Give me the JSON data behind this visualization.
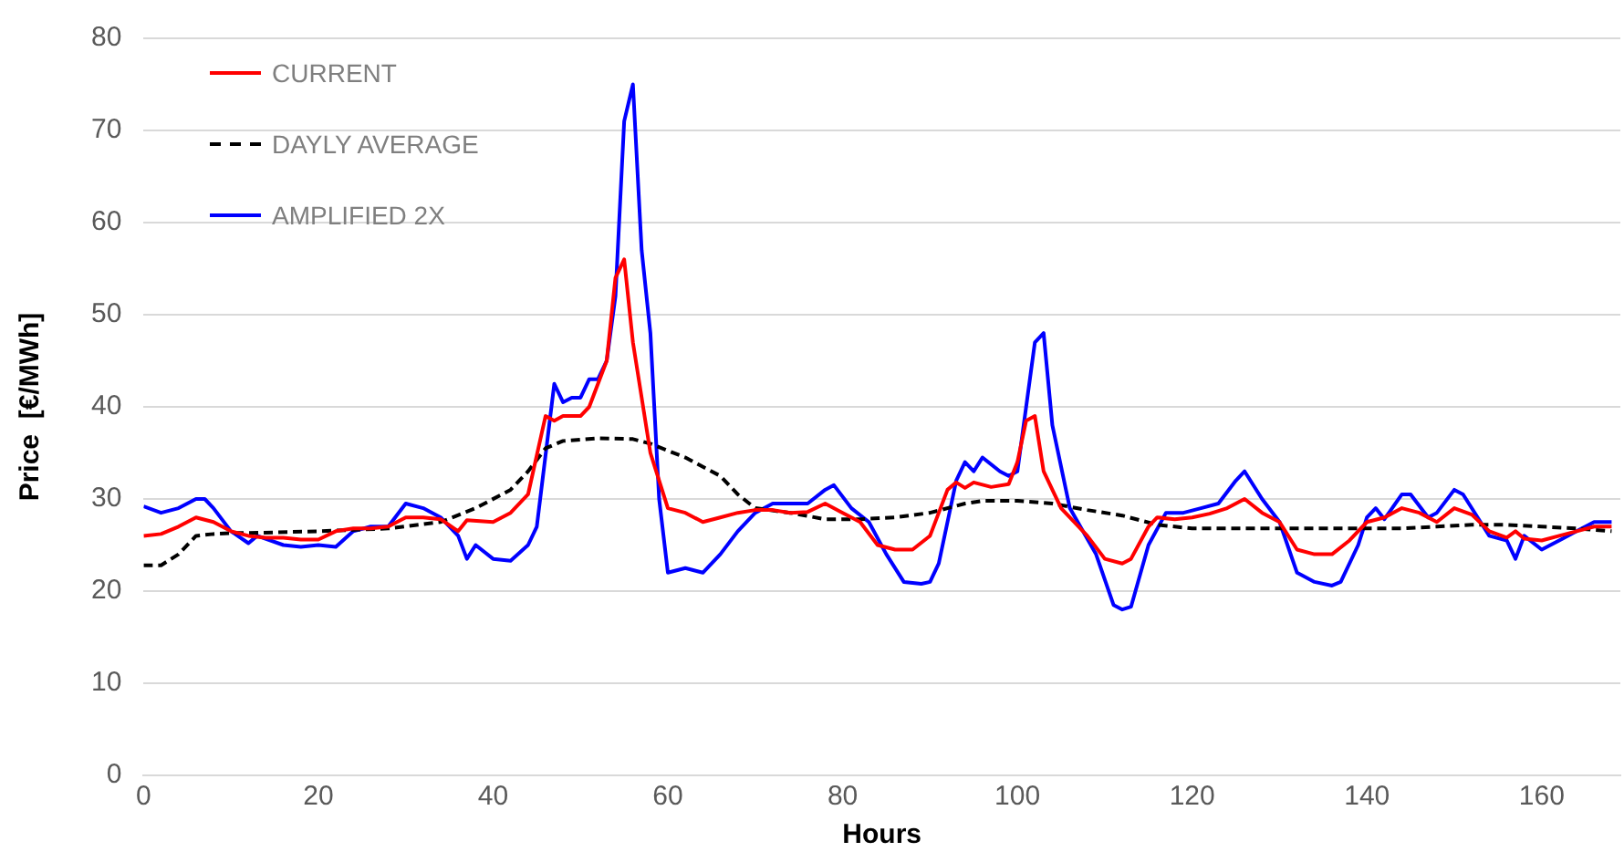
{
  "chart_data": {
    "type": "line",
    "xlabel": "Hours",
    "ylabel": "Price  [€/MWh]",
    "xlim": [
      0,
      169
    ],
    "xticks": [
      0,
      20,
      40,
      60,
      80,
      100,
      120,
      140,
      160
    ],
    "ylim": [
      0,
      80
    ],
    "yticks": [
      0,
      10,
      20,
      30,
      40,
      50,
      60,
      70,
      80
    ],
    "grid": "y",
    "legend": "top left",
    "marker": "none",
    "series": [
      {
        "name": "CURRENT",
        "color": "#ff0000",
        "line_style": "solid",
        "x": [
          0,
          2,
          4,
          6,
          8,
          10,
          12,
          14,
          16,
          18,
          20,
          22,
          24,
          26,
          28,
          30,
          32,
          34,
          36,
          37,
          40,
          42,
          44,
          46,
          47,
          48,
          50,
          51,
          53,
          54,
          55,
          56,
          58,
          60,
          62,
          64,
          66,
          68,
          70,
          72,
          74,
          76,
          78,
          80,
          82,
          84,
          86,
          88,
          90,
          92,
          93,
          94,
          95,
          97,
          99,
          100,
          101,
          102,
          103,
          105,
          108,
          110,
          112,
          113,
          115,
          116,
          118,
          120,
          122,
          124,
          126,
          128,
          130,
          132,
          134,
          136,
          138,
          140,
          142,
          144,
          146,
          148,
          150,
          152,
          154,
          156,
          157,
          158,
          160,
          162,
          164,
          166,
          168
        ],
        "values": [
          26,
          26.2,
          27,
          28,
          27.5,
          26.5,
          26,
          25.8,
          25.8,
          25.6,
          25.6,
          26.5,
          26.8,
          26.8,
          27,
          28,
          28,
          27.8,
          26.5,
          27.7,
          27.5,
          28.5,
          30.5,
          39,
          38.5,
          39,
          39,
          40,
          45,
          54,
          56,
          47,
          35,
          29,
          28.5,
          27.5,
          28,
          28.5,
          28.8,
          28.8,
          28.5,
          28.6,
          29.5,
          28.5,
          27.5,
          25,
          24.5,
          24.5,
          26,
          31,
          31.8,
          31.2,
          31.8,
          31.3,
          31.6,
          34,
          38.5,
          39,
          33,
          29,
          26,
          23.5,
          23,
          23.5,
          27,
          28,
          27.8,
          28,
          28.4,
          29,
          30,
          28.5,
          27.5,
          24.5,
          24,
          24,
          25.5,
          27.5,
          28,
          29,
          28.5,
          27.5,
          29,
          28.3,
          26.5,
          25.8,
          26.5,
          25.7,
          25.5,
          26,
          26.5,
          27,
          27
        ]
      },
      {
        "name": "DAYLY AVERAGE",
        "color": "#000000",
        "line_style": "dashed",
        "x": [
          0,
          2,
          4,
          6,
          8,
          10,
          12,
          20,
          28,
          34,
          38,
          42,
          44,
          46,
          48,
          52,
          56,
          58,
          62,
          66,
          68,
          70,
          74,
          78,
          82,
          86,
          90,
          94,
          96,
          100,
          104,
          108,
          112,
          116,
          120,
          124,
          128,
          132,
          136,
          140,
          144,
          148,
          152,
          156,
          160,
          164,
          168
        ],
        "values": [
          22.8,
          22.8,
          24,
          26,
          26.2,
          26.3,
          26.3,
          26.5,
          26.8,
          27.5,
          29,
          31,
          33,
          35.5,
          36.3,
          36.6,
          36.5,
          36,
          34.5,
          32.5,
          30.5,
          29,
          28.5,
          27.8,
          27.8,
          28,
          28.5,
          29.5,
          29.8,
          29.8,
          29.5,
          28.8,
          28.2,
          27.2,
          26.8,
          26.8,
          26.8,
          26.8,
          26.8,
          26.8,
          26.8,
          27,
          27.2,
          27.2,
          27,
          26.8,
          26.5
        ]
      },
      {
        "name": "AMPLIFIED 2X",
        "color": "#0000ff",
        "line_style": "solid",
        "x": [
          0,
          2,
          4,
          6,
          7,
          8,
          10,
          12,
          13,
          16,
          18,
          20,
          22,
          24,
          26,
          28,
          30,
          32,
          34,
          36,
          37,
          38,
          40,
          42,
          44,
          45,
          47,
          48,
          49,
          50,
          51,
          52,
          53,
          54,
          55,
          56,
          57,
          58,
          59,
          60,
          62,
          64,
          66,
          68,
          70,
          72,
          74,
          76,
          78,
          79,
          81,
          83,
          85,
          87,
          89,
          90,
          91,
          93,
          94,
          95,
          96,
          98,
          99,
          100,
          101,
          102,
          103,
          104,
          106,
          109,
          111,
          112,
          113,
          115,
          117,
          119,
          121,
          123,
          125,
          126,
          128,
          130,
          132,
          134,
          136,
          137,
          139,
          140,
          141,
          142,
          144,
          145,
          147,
          148,
          150,
          151,
          153,
          154,
          156,
          157,
          158,
          160,
          162,
          164,
          166,
          168
        ],
        "values": [
          29.2,
          28.5,
          29,
          30,
          30,
          29,
          26.5,
          25.2,
          26,
          25,
          24.8,
          25,
          24.8,
          26.5,
          27,
          27,
          29.5,
          29,
          28,
          26,
          23.5,
          25,
          23.5,
          23.3,
          25,
          27,
          42.5,
          40.5,
          41,
          41,
          43,
          43,
          45,
          52,
          71,
          75,
          57,
          48,
          30,
          22,
          22.5,
          22,
          24,
          26.5,
          28.5,
          29.5,
          29.5,
          29.5,
          31,
          31.5,
          29,
          27.5,
          24,
          21,
          20.8,
          21,
          23,
          32,
          34,
          33,
          34.5,
          33,
          32.5,
          33,
          40,
          47,
          48,
          38,
          29,
          24,
          18.5,
          18,
          18.3,
          25,
          28.5,
          28.5,
          29,
          29.5,
          32,
          33,
          30,
          27.5,
          22,
          21,
          20.6,
          21,
          25,
          28,
          29,
          27.8,
          30.5,
          30.5,
          28,
          28.5,
          31,
          30.5,
          27.5,
          26,
          25.5,
          23.5,
          26,
          24.5,
          25.5,
          26.5,
          27.5,
          27.5
        ]
      }
    ]
  }
}
